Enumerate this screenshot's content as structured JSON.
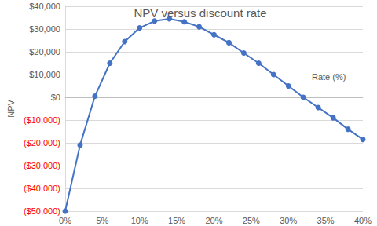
{
  "chart_data": {
    "type": "line",
    "title": "NPV versus discount rate",
    "x_label": "Rate (%)",
    "y_label": "NPV",
    "x": [
      0,
      2,
      4,
      6,
      8,
      10,
      12,
      14,
      16,
      18,
      20,
      22,
      24,
      26,
      28,
      30,
      32,
      34,
      36,
      38,
      40
    ],
    "values": [
      -50000,
      -21000,
      500,
      15000,
      24500,
      30500,
      33500,
      34500,
      33200,
      31000,
      27500,
      24000,
      19500,
      15000,
      10000,
      5000,
      0,
      -4500,
      -9000,
      -14000,
      -18500
    ],
    "color": "#4472c4",
    "marker": "circle",
    "xlim": [
      0,
      40
    ],
    "xticks": [
      {
        "value": 0,
        "label": "0%"
      },
      {
        "value": 5,
        "label": "5%"
      },
      {
        "value": 10,
        "label": "10%"
      },
      {
        "value": 15,
        "label": "15%"
      },
      {
        "value": 20,
        "label": "20%"
      },
      {
        "value": 25,
        "label": "25%"
      },
      {
        "value": 30,
        "label": "30%"
      },
      {
        "value": 35,
        "label": "35%"
      },
      {
        "value": 40,
        "label": "40%"
      }
    ],
    "ylim": [
      -50000,
      40000
    ],
    "yticks": [
      {
        "value": -50000,
        "label": "($50,000)"
      },
      {
        "value": -40000,
        "label": "($40,000)"
      },
      {
        "value": -30000,
        "label": "($30,000)"
      },
      {
        "value": -20000,
        "label": "($20,000)"
      },
      {
        "value": -10000,
        "label": "($10,000)"
      },
      {
        "value": 0,
        "label": "$0"
      },
      {
        "value": 10000,
        "label": "$10,000"
      },
      {
        "value": 20000,
        "label": "$20,000"
      },
      {
        "value": 30000,
        "label": "$30,000"
      },
      {
        "value": 40000,
        "label": "$40,000"
      }
    ],
    "grid": true
  }
}
